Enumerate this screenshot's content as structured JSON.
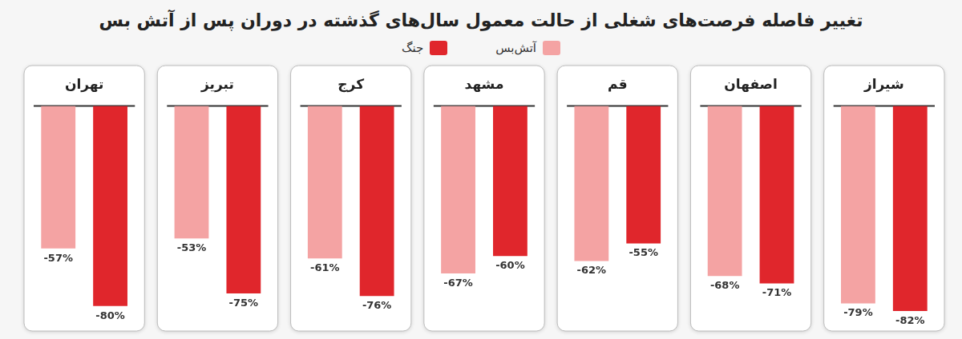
{
  "chart_data": {
    "type": "bar",
    "title": "تغییر فاصله فرصت‌های شغلی از حالت معمول سال‌های گذشته در دوران پس از آتش بس",
    "categories": [
      "شیراز",
      "اصفهان",
      "قم",
      "مشهد",
      "کرج",
      "تبریز",
      "تهران"
    ],
    "series": [
      {
        "name": "آتش‌بس",
        "color": "#f4a3a3",
        "values": [
          -79,
          -68,
          -62,
          -67,
          -61,
          -53,
          -57
        ],
        "value_labels": [
          "-79%",
          "-68%",
          "-62%",
          "-67%",
          "-61%",
          "-53%",
          "-57%"
        ]
      },
      {
        "name": "جنگ",
        "color": "#e0262c",
        "values": [
          -82,
          -71,
          -55,
          -60,
          -76,
          -75,
          -80
        ],
        "value_labels": [
          "-82%",
          "-71%",
          "-55%",
          "-60%",
          "-76%",
          "-75%",
          "-80%"
        ]
      }
    ],
    "ylim": [
      -90,
      0
    ],
    "yticks": [
      0
    ],
    "grid": true,
    "legend": "top",
    "data_labels": true,
    "tick_labels": "x"
  }
}
